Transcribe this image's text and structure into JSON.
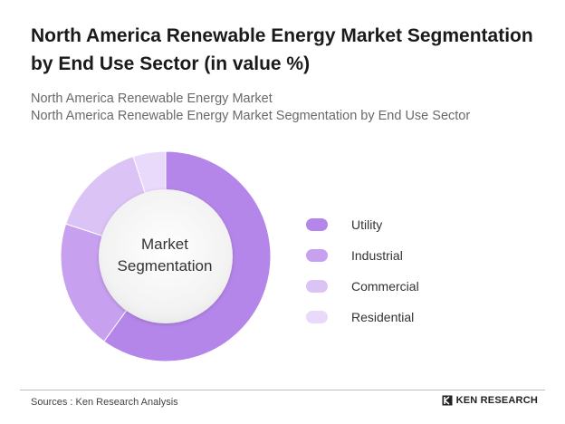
{
  "header": {
    "title": "North America Renewable Energy Market Segmentation by End Use Sector (in value %)",
    "subtitle_line1": "North America Renewable Energy Market",
    "subtitle_line2": "North America Renewable Energy Market Segmentation by End Use Sector"
  },
  "chart_data": {
    "type": "pie",
    "title": "North America Renewable Energy Market Segmentation by End Use Sector (in value %)",
    "center_label": "Market Segmentation",
    "legend_position": "right",
    "categories": [
      "Utility",
      "Industrial",
      "Commercial",
      "Residential"
    ],
    "values": [
      60,
      20,
      15,
      5
    ],
    "colors": [
      "#b586ea",
      "#c8a0f0",
      "#dcc3f6",
      "#e9d9fb"
    ]
  },
  "footer": {
    "source": "Sources : Ken Research Analysis",
    "brand": "KEN RESEARCH"
  }
}
